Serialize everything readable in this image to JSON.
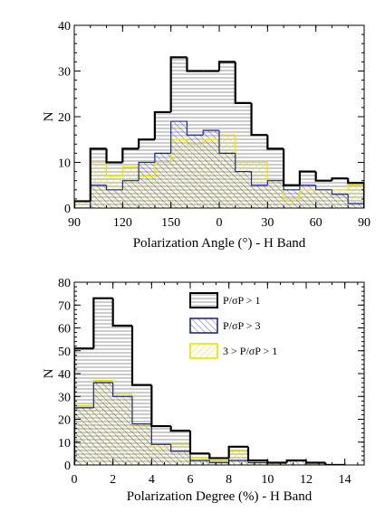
{
  "chart_data": [
    {
      "type": "histogram",
      "xlabel": "Polarization Angle (°) - H Band",
      "ylabel": "N",
      "xrange": [
        90,
        270
      ],
      "xtick_values": [
        90,
        120,
        150,
        180,
        210,
        240,
        270
      ],
      "xtick_labels": [
        "90",
        "120",
        "150",
        "0",
        "30",
        "60",
        "90"
      ],
      "ylim": [
        0,
        40
      ],
      "ytick_values": [
        0,
        10,
        20,
        30,
        40
      ],
      "ytick_labels": [
        "0",
        "10",
        "20",
        "30",
        "40"
      ],
      "bin_edges": [
        90,
        100,
        110,
        120,
        130,
        140,
        150,
        160,
        170,
        180,
        190,
        200,
        210,
        220,
        230,
        240,
        250,
        260,
        270
      ],
      "series": [
        {
          "name": "P/σP > 1",
          "key": "p1",
          "color": "#000000",
          "values": [
            1.5,
            13,
            10,
            13,
            15,
            21,
            33,
            30,
            30,
            32,
            23,
            16,
            13,
            5,
            8,
            6,
            6.5,
            5.5
          ]
        },
        {
          "name": "P/σP > 3",
          "key": "p3",
          "color": "#1c2a8c",
          "values": [
            0,
            5,
            4,
            6,
            10,
            12,
            19,
            16,
            17,
            12,
            8,
            5,
            6,
            4,
            5,
            4,
            3,
            1
          ]
        },
        {
          "name": "3 > P/σP > 1",
          "key": "p31",
          "color": "#f0e000",
          "values": [
            1.5,
            10,
            7,
            9,
            7,
            10,
            15,
            14,
            15,
            16,
            10,
            10,
            6,
            2,
            4,
            4,
            4,
            5
          ]
        }
      ]
    },
    {
      "type": "histogram",
      "xlabel": "Polarization Degree (%) - H Band",
      "ylabel": "N",
      "xrange": [
        0,
        15
      ],
      "xtick_values": [
        0,
        2,
        4,
        6,
        8,
        10,
        12,
        14
      ],
      "xtick_labels": [
        "0",
        "2",
        "4",
        "6",
        "8",
        "10",
        "12",
        "14"
      ],
      "ylim": [
        0,
        80
      ],
      "ytick_values": [
        0,
        10,
        20,
        30,
        40,
        50,
        60,
        70,
        80
      ],
      "ytick_labels": [
        "0",
        "10",
        "20",
        "30",
        "40",
        "50",
        "60",
        "70",
        "80"
      ],
      "bin_edges": [
        0,
        1,
        2,
        3,
        4,
        5,
        6,
        7,
        8,
        9,
        10,
        11,
        12,
        13,
        14
      ],
      "legend_position": "upper-right",
      "series": [
        {
          "name": "P/σP > 1",
          "key": "p1",
          "color": "#000000",
          "values": [
            51,
            73,
            61,
            35,
            17,
            15,
            5,
            3,
            8,
            2,
            1,
            2,
            1,
            0
          ]
        },
        {
          "name": "P/σP > 3",
          "key": "p3",
          "color": "#1c2a8c",
          "values": [
            25,
            36,
            30,
            18,
            9,
            6,
            2,
            1,
            2,
            1,
            1,
            2,
            0,
            0
          ]
        },
        {
          "name": "3 > P/σP > 1",
          "key": "p31",
          "color": "#f0e000",
          "values": [
            26,
            37,
            31,
            17,
            8,
            9,
            3,
            2,
            6,
            1,
            0,
            0,
            1,
            0
          ]
        }
      ]
    }
  ]
}
